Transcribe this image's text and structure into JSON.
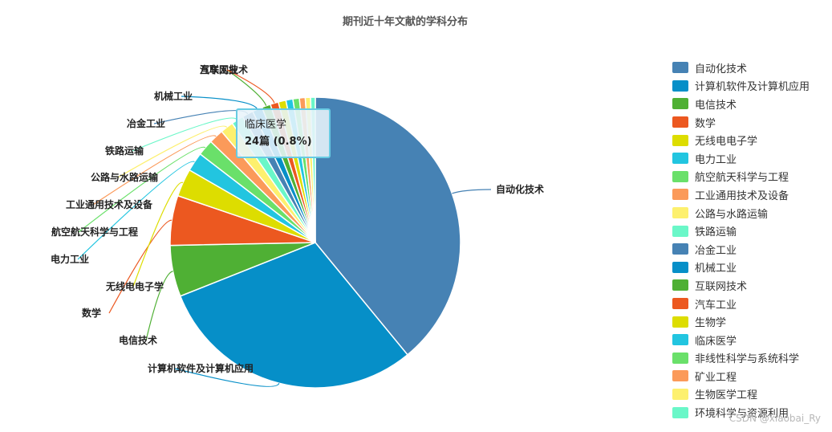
{
  "chart_data": {
    "type": "pie",
    "title": "期刊近十年文献的学科分布",
    "slices": [
      {
        "name": "自动化技术",
        "value": 1200,
        "color": "#4682b4"
      },
      {
        "name": "计算机软件及计算机应用",
        "value": 920,
        "color": "#068fc8"
      },
      {
        "name": "电信技术",
        "value": 175,
        "color": "#4fb034"
      },
      {
        "name": "数学",
        "value": 170,
        "color": "#ec5820"
      },
      {
        "name": "无线电电子学",
        "value": 95,
        "color": "#dddd00"
      },
      {
        "name": "电力工业",
        "value": 65,
        "color": "#22c5e0"
      },
      {
        "name": "航空航天科学与工程",
        "value": 55,
        "color": "#6ae06a"
      },
      {
        "name": "工业通用技术及设备",
        "value": 50,
        "color": "#fb9a5a"
      },
      {
        "name": "公路与水路运输",
        "value": 45,
        "color": "#fdf06e"
      },
      {
        "name": "铁路运输",
        "value": 42,
        "color": "#6af7c8"
      },
      {
        "name": "冶金工业",
        "value": 38,
        "color": "#4682b4"
      },
      {
        "name": "机械工业",
        "value": 34,
        "color": "#068fc8"
      },
      {
        "name": "互联网技术",
        "value": 30,
        "color": "#4fb034"
      },
      {
        "name": "汽车工业",
        "value": 28,
        "color": "#ec5820"
      },
      {
        "name": "生物学",
        "value": 26,
        "color": "#dddd00"
      },
      {
        "name": "临床医学",
        "value": 24,
        "color": "#22c5e0"
      },
      {
        "name": "非线性科学与系统科学",
        "value": 22,
        "color": "#6ae06a"
      },
      {
        "name": "矿业工程",
        "value": 20,
        "color": "#fb9a5a"
      },
      {
        "name": "生物医学工程",
        "value": 18,
        "color": "#fdf06e"
      },
      {
        "name": "环境科学与资源利用",
        "value": 16,
        "color": "#6af7c8"
      }
    ],
    "labeled_slices": [
      "自动化技术",
      "计算机软件及计算机应用",
      "电信技术",
      "数学",
      "无线电电子学",
      "电力工业",
      "航空航天科学与工程",
      "工业通用技术及设备",
      "公路与水路运输",
      "铁路运输",
      "冶金工业",
      "机械工业",
      "互联网技术",
      "汽车工业"
    ],
    "legend_position": "right",
    "tooltip": {
      "name": "临床医学",
      "value_text": "24篇 (0.8%)"
    }
  },
  "watermark": "CSDN @xiaobai_Ry"
}
